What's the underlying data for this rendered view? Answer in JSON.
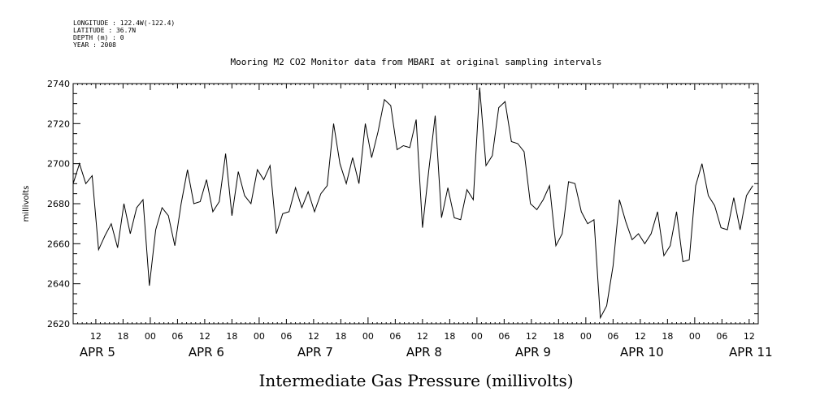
{
  "header": {
    "lines": [
      "LONGITUDE : 122.4W(-122.4)",
      "LATITUDE : 36.7N",
      "DEPTH (m) : 0",
      "YEAR : 2008"
    ]
  },
  "chart_data": {
    "type": "line",
    "title": "Mooring M2 CO2 Monitor data from MBARI at original sampling intervals",
    "xlabel": "Intermediate Gas Pressure (millivolts)",
    "ylabel": "millivolts",
    "ylim": [
      2620,
      2740
    ],
    "y_ticks": [
      2620,
      2640,
      2660,
      2680,
      2700,
      2720,
      2740
    ],
    "xlim_hours": [
      7,
      158
    ],
    "x_tick_labels": [
      {
        "hour": 12,
        "label": "12"
      },
      {
        "hour": 18,
        "label": "18"
      },
      {
        "hour": 24,
        "label": "00"
      },
      {
        "hour": 30,
        "label": "06"
      },
      {
        "hour": 36,
        "label": "12"
      },
      {
        "hour": 42,
        "label": "18"
      },
      {
        "hour": 48,
        "label": "00"
      },
      {
        "hour": 54,
        "label": "06"
      },
      {
        "hour": 60,
        "label": "12"
      },
      {
        "hour": 66,
        "label": "18"
      },
      {
        "hour": 72,
        "label": "00"
      },
      {
        "hour": 78,
        "label": "06"
      },
      {
        "hour": 84,
        "label": "12"
      },
      {
        "hour": 90,
        "label": "18"
      },
      {
        "hour": 96,
        "label": "00"
      },
      {
        "hour": 102,
        "label": "06"
      },
      {
        "hour": 108,
        "label": "12"
      },
      {
        "hour": 114,
        "label": "18"
      },
      {
        "hour": 120,
        "label": "00"
      },
      {
        "hour": 126,
        "label": "06"
      },
      {
        "hour": 132,
        "label": "12"
      },
      {
        "hour": 138,
        "label": "18"
      },
      {
        "hour": 144,
        "label": "00"
      },
      {
        "hour": 150,
        "label": "06"
      },
      {
        "hour": 156,
        "label": "12"
      }
    ],
    "day_labels": [
      {
        "hour": 12,
        "label": "APR 5"
      },
      {
        "hour": 36,
        "label": "APR 6"
      },
      {
        "hour": 60,
        "label": "APR 7"
      },
      {
        "hour": 84,
        "label": "APR 8"
      },
      {
        "hour": 108,
        "label": "APR 9"
      },
      {
        "hour": 132,
        "label": "APR 10"
      },
      {
        "hour": 156,
        "label": "APR 11"
      }
    ],
    "series": [
      {
        "values": [
          [
            7.0,
            2690
          ],
          [
            8.4,
            2700
          ],
          [
            9.8,
            2690
          ],
          [
            11.2,
            2694
          ],
          [
            12.6,
            2657
          ],
          [
            14.0,
            2664
          ],
          [
            15.4,
            2670
          ],
          [
            16.8,
            2658
          ],
          [
            18.2,
            2680
          ],
          [
            19.6,
            2665
          ],
          [
            21.0,
            2678
          ],
          [
            22.4,
            2682
          ],
          [
            23.8,
            2639
          ],
          [
            25.2,
            2667
          ],
          [
            26.6,
            2678
          ],
          [
            28.0,
            2674
          ],
          [
            29.4,
            2659
          ],
          [
            30.8,
            2680
          ],
          [
            32.2,
            2697
          ],
          [
            33.6,
            2680
          ],
          [
            35.0,
            2681
          ],
          [
            36.4,
            2692
          ],
          [
            37.8,
            2676
          ],
          [
            39.2,
            2681
          ],
          [
            40.6,
            2705
          ],
          [
            42.0,
            2674
          ],
          [
            43.4,
            2696
          ],
          [
            44.8,
            2684
          ],
          [
            46.2,
            2680
          ],
          [
            47.6,
            2697
          ],
          [
            49.0,
            2692
          ],
          [
            50.4,
            2699
          ],
          [
            51.8,
            2665
          ],
          [
            53.2,
            2675
          ],
          [
            54.6,
            2676
          ],
          [
            56.0,
            2688
          ],
          [
            57.4,
            2678
          ],
          [
            58.8,
            2686
          ],
          [
            60.2,
            2676
          ],
          [
            61.6,
            2685
          ],
          [
            63.0,
            2689
          ],
          [
            64.4,
            2720
          ],
          [
            65.8,
            2700
          ],
          [
            67.2,
            2690
          ],
          [
            68.6,
            2703
          ],
          [
            70.0,
            2690
          ],
          [
            71.4,
            2720
          ],
          [
            72.8,
            2703
          ],
          [
            74.2,
            2716
          ],
          [
            75.6,
            2732
          ],
          [
            77.0,
            2729
          ],
          [
            78.4,
            2707
          ],
          [
            79.8,
            2709
          ],
          [
            81.2,
            2708
          ],
          [
            82.6,
            2722
          ],
          [
            84.0,
            2668
          ],
          [
            85.4,
            2697
          ],
          [
            86.8,
            2724
          ],
          [
            88.2,
            2673
          ],
          [
            89.6,
            2688
          ],
          [
            91.0,
            2673
          ],
          [
            92.4,
            2672
          ],
          [
            93.8,
            2687
          ],
          [
            95.2,
            2682
          ],
          [
            96.6,
            2738
          ],
          [
            98.0,
            2699
          ],
          [
            99.4,
            2704
          ],
          [
            100.8,
            2728
          ],
          [
            102.2,
            2731
          ],
          [
            103.6,
            2711
          ],
          [
            105.0,
            2710
          ],
          [
            106.4,
            2706
          ],
          [
            107.8,
            2680
          ],
          [
            109.2,
            2677
          ],
          [
            110.6,
            2682
          ],
          [
            112.0,
            2689
          ],
          [
            113.4,
            2659
          ],
          [
            114.8,
            2665
          ],
          [
            116.2,
            2691
          ],
          [
            117.6,
            2690
          ],
          [
            119.0,
            2676
          ],
          [
            120.4,
            2670
          ],
          [
            121.8,
            2672
          ],
          [
            123.2,
            2623
          ],
          [
            124.6,
            2629
          ],
          [
            126.0,
            2649
          ],
          [
            127.4,
            2682
          ],
          [
            128.8,
            2671
          ],
          [
            130.2,
            2662
          ],
          [
            131.6,
            2665
          ],
          [
            133.0,
            2660
          ],
          [
            134.4,
            2665
          ],
          [
            135.8,
            2676
          ],
          [
            137.2,
            2654
          ],
          [
            138.6,
            2659
          ],
          [
            140.0,
            2676
          ],
          [
            141.4,
            2651
          ],
          [
            142.8,
            2652
          ],
          [
            144.2,
            2689
          ],
          [
            145.6,
            2700
          ],
          [
            147.0,
            2684
          ],
          [
            148.4,
            2679
          ],
          [
            149.8,
            2668
          ],
          [
            151.2,
            2667
          ],
          [
            152.6,
            2683
          ],
          [
            154.0,
            2667
          ],
          [
            155.4,
            2684
          ],
          [
            156.8,
            2689
          ]
        ]
      }
    ]
  }
}
